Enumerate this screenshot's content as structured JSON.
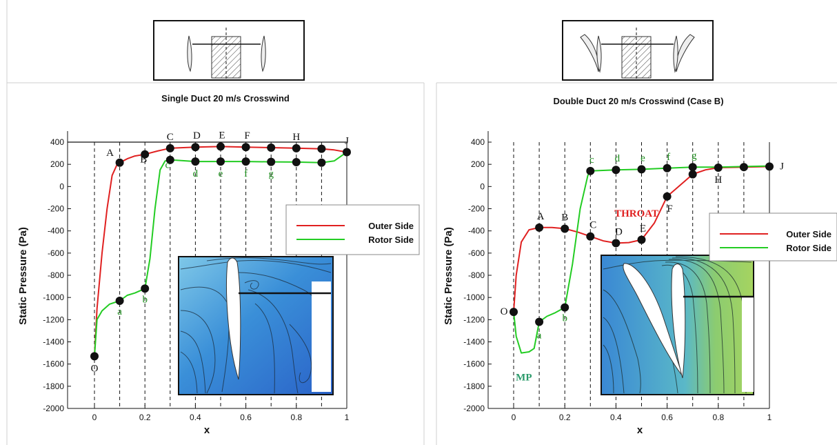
{
  "chart_data": [
    {
      "type": "line",
      "title": "Single Duct 20 m/s Crosswind",
      "xlabel": "x",
      "ylabel": "Static Pressure (Pa)",
      "xlim": [
        -0.1,
        1.0
      ],
      "ylim": [
        -2000,
        400
      ],
      "xticks": [
        0,
        0.2,
        0.4,
        0.6,
        0.8,
        1
      ],
      "xtick_labels": [
        "0",
        "0.2",
        "0.4",
        "0.6",
        "0.8",
        "1"
      ],
      "yticks": [
        400,
        200,
        0,
        -200,
        -400,
        -600,
        -800,
        -1000,
        -1200,
        -1400,
        -1600,
        -1800,
        -2000
      ],
      "ytick_labels": [
        "400",
        "200",
        "0",
        "-200",
        "-400",
        "-600",
        "-800",
        "-1000",
        "-1200",
        "-1400",
        "-1600",
        "-1800",
        "-2000"
      ],
      "dashed_x": [
        0,
        0.1,
        0.2,
        0.3,
        0.4,
        0.5,
        0.6,
        0.7,
        0.8,
        0.9
      ],
      "legend": "right",
      "series": [
        {
          "name": "Outer Side",
          "color": "#e02020",
          "x": [
            0,
            0.01,
            0.03,
            0.05,
            0.07,
            0.09,
            0.1,
            0.13,
            0.16,
            0.2,
            0.25,
            0.3,
            0.4,
            0.5,
            0.6,
            0.7,
            0.8,
            0.9,
            0.95,
            1.0
          ],
          "y": [
            -1530,
            -1100,
            -600,
            -200,
            100,
            200,
            215,
            250,
            275,
            290,
            320,
            345,
            355,
            360,
            355,
            350,
            345,
            340,
            330,
            310
          ]
        },
        {
          "name": "Rotor Side",
          "color": "#22cc22",
          "x": [
            0,
            0.01,
            0.03,
            0.06,
            0.1,
            0.13,
            0.16,
            0.2,
            0.22,
            0.24,
            0.26,
            0.28,
            0.3,
            0.4,
            0.5,
            0.6,
            0.7,
            0.8,
            0.9,
            0.95,
            1.0
          ],
          "y": [
            -1530,
            -1200,
            -1120,
            -1060,
            -1030,
            -980,
            -960,
            -920,
            -650,
            -200,
            150,
            230,
            240,
            225,
            225,
            225,
            222,
            220,
            215,
            230,
            310
          ]
        }
      ],
      "point_labels": [
        {
          "text": "A",
          "x": 0.1,
          "y": 215,
          "color": "#111111"
        },
        {
          "text": "B",
          "x": 0.2,
          "y": 290,
          "color": "#111111"
        },
        {
          "text": "C",
          "x": 0.3,
          "y": 345,
          "color": "#111111"
        },
        {
          "text": "D",
          "x": 0.4,
          "y": 355,
          "color": "#111111"
        },
        {
          "text": "E",
          "x": 0.5,
          "y": 360,
          "color": "#111111"
        },
        {
          "text": "F",
          "x": 0.6,
          "y": 355,
          "color": "#111111"
        },
        {
          "text": "H",
          "x": 0.8,
          "y": 345,
          "color": "#111111"
        },
        {
          "text": "J",
          "x": 1.0,
          "y": 310,
          "color": "#111111"
        },
        {
          "text": "O",
          "x": 0,
          "y": -1530,
          "color": "#111111"
        },
        {
          "text": "a",
          "x": 0.1,
          "y": -1030,
          "color": "#1a8a1a"
        },
        {
          "text": "b",
          "x": 0.2,
          "y": -920,
          "color": "#1a8a1a"
        },
        {
          "text": "c",
          "x": 0.3,
          "y": 240,
          "color": "#1a8a1a"
        },
        {
          "text": "d",
          "x": 0.4,
          "y": 225,
          "color": "#1a8a1a"
        },
        {
          "text": "e",
          "x": 0.5,
          "y": 225,
          "color": "#1a8a1a"
        },
        {
          "text": "f",
          "x": 0.6,
          "y": 225,
          "color": "#1a8a1a"
        },
        {
          "text": "g",
          "x": 0.7,
          "y": 222,
          "color": "#1a8a1a"
        }
      ],
      "markers": [
        {
          "x": 0,
          "y": -1530
        },
        {
          "x": 0.1,
          "y": 215
        },
        {
          "x": 0.2,
          "y": 290
        },
        {
          "x": 0.3,
          "y": 345
        },
        {
          "x": 0.4,
          "y": 355
        },
        {
          "x": 0.5,
          "y": 360
        },
        {
          "x": 0.6,
          "y": 355
        },
        {
          "x": 0.7,
          "y": 350
        },
        {
          "x": 0.8,
          "y": 345
        },
        {
          "x": 0.9,
          "y": 340
        },
        {
          "x": 1.0,
          "y": 310
        },
        {
          "x": 0.1,
          "y": -1030
        },
        {
          "x": 0.2,
          "y": -920
        },
        {
          "x": 0.3,
          "y": 240
        },
        {
          "x": 0.4,
          "y": 225
        },
        {
          "x": 0.5,
          "y": 225
        },
        {
          "x": 0.6,
          "y": 225
        },
        {
          "x": 0.7,
          "y": 222
        },
        {
          "x": 0.8,
          "y": 220
        },
        {
          "x": 0.9,
          "y": 215
        }
      ]
    },
    {
      "type": "line",
      "title": "Double  Duct 20 m/s Crosswind (Case B)",
      "xlabel": "x",
      "ylabel": "Static Pressure (Pa)",
      "xlim": [
        -0.1,
        1.0
      ],
      "ylim": [
        -2000,
        400
      ],
      "xticks": [
        0,
        0.2,
        0.4,
        0.6,
        0.8,
        1
      ],
      "xtick_labels": [
        "0",
        "0.2",
        "0.4",
        "0.6",
        "0.8",
        "1"
      ],
      "yticks": [
        400,
        200,
        0,
        -200,
        -400,
        -600,
        -800,
        -1000,
        -1200,
        -1400,
        -1600,
        -1800,
        -2000
      ],
      "ytick_labels": [
        "400",
        "200",
        "0",
        "-200",
        "-400",
        "-600",
        "-800",
        "-1000",
        "-1200",
        "-1400",
        "-1600",
        "-1800",
        "-2000"
      ],
      "dashed_x": [
        0,
        0.1,
        0.2,
        0.3,
        0.4,
        0.5,
        0.6,
        0.7,
        0.8,
        0.9
      ],
      "legend": "right",
      "series": [
        {
          "name": "Outer Side",
          "color": "#e02020",
          "x": [
            0,
            0.01,
            0.03,
            0.06,
            0.1,
            0.15,
            0.2,
            0.25,
            0.3,
            0.35,
            0.4,
            0.45,
            0.5,
            0.55,
            0.6,
            0.65,
            0.7,
            0.75,
            0.8,
            0.9,
            1.0
          ],
          "y": [
            -1130,
            -800,
            -500,
            -390,
            -370,
            -370,
            -380,
            -410,
            -450,
            -490,
            -510,
            -505,
            -480,
            -330,
            -90,
            10,
            110,
            150,
            170,
            175,
            180
          ]
        },
        {
          "name": "Rotor Side",
          "color": "#22cc22",
          "x": [
            0,
            0.01,
            0.03,
            0.06,
            0.08,
            0.1,
            0.13,
            0.16,
            0.2,
            0.23,
            0.26,
            0.29,
            0.3,
            0.4,
            0.5,
            0.6,
            0.7,
            0.8,
            0.9,
            1.0
          ],
          "y": [
            -1130,
            -1350,
            -1500,
            -1490,
            -1460,
            -1220,
            -1170,
            -1140,
            -1090,
            -700,
            -200,
            100,
            140,
            150,
            155,
            165,
            175,
            175,
            180,
            185
          ]
        }
      ],
      "point_labels": [
        {
          "text": "A",
          "x": 0.1,
          "y": -370,
          "color": "#111111"
        },
        {
          "text": "B",
          "x": 0.2,
          "y": -380,
          "color": "#111111"
        },
        {
          "text": "C",
          "x": 0.3,
          "y": -450,
          "color": "#111111"
        },
        {
          "text": "D",
          "x": 0.4,
          "y": -510,
          "color": "#111111"
        },
        {
          "text": "E",
          "x": 0.5,
          "y": -480,
          "color": "#111111"
        },
        {
          "text": "F",
          "x": 0.6,
          "y": -90,
          "color": "#111111"
        },
        {
          "text": "H",
          "x": 0.8,
          "y": 170,
          "color": "#111111"
        },
        {
          "text": "J",
          "x": 1.0,
          "y": 180,
          "color": "#111111"
        },
        {
          "text": "O",
          "x": 0,
          "y": -1130,
          "color": "#111111"
        },
        {
          "text": "a",
          "x": 0.1,
          "y": -1220,
          "color": "#1a8a1a"
        },
        {
          "text": "b",
          "x": 0.2,
          "y": -1090,
          "color": "#1a8a1a"
        },
        {
          "text": "c",
          "x": 0.3,
          "y": 140,
          "color": "#1a8a1a"
        },
        {
          "text": "d",
          "x": 0.4,
          "y": 150,
          "color": "#1a8a1a"
        },
        {
          "text": "e",
          "x": 0.5,
          "y": 155,
          "color": "#1a8a1a"
        },
        {
          "text": "f",
          "x": 0.6,
          "y": 165,
          "color": "#1a8a1a"
        },
        {
          "text": "g",
          "x": 0.7,
          "y": 175,
          "color": "#1a8a1a"
        },
        {
          "text": "MP",
          "x": 0.04,
          "y": -1500,
          "color": "#2a9a6a"
        },
        {
          "text": "THROAT",
          "x": 0.48,
          "y": -270,
          "color": "#e02020"
        }
      ],
      "markers": [
        {
          "x": 0,
          "y": -1130
        },
        {
          "x": 0.1,
          "y": -370
        },
        {
          "x": 0.2,
          "y": -380
        },
        {
          "x": 0.3,
          "y": -450
        },
        {
          "x": 0.4,
          "y": -510
        },
        {
          "x": 0.5,
          "y": -480
        },
        {
          "x": 0.6,
          "y": -90
        },
        {
          "x": 0.7,
          "y": 110
        },
        {
          "x": 0.8,
          "y": 170
        },
        {
          "x": 0.9,
          "y": 175
        },
        {
          "x": 1.0,
          "y": 180
        },
        {
          "x": 0.1,
          "y": -1220
        },
        {
          "x": 0.2,
          "y": -1090
        },
        {
          "x": 0.3,
          "y": 140
        },
        {
          "x": 0.4,
          "y": 150
        },
        {
          "x": 0.5,
          "y": 155
        },
        {
          "x": 0.6,
          "y": 165
        },
        {
          "x": 0.7,
          "y": 175
        }
      ]
    }
  ]
}
